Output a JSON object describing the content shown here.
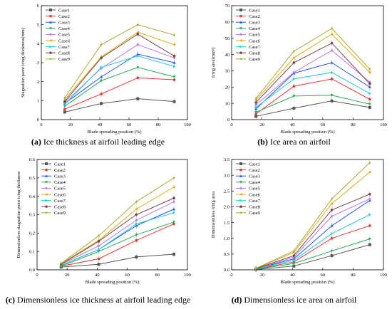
{
  "figure": {
    "captions": [
      {
        "letter": "(a)",
        "text": " Ice thickness at airfoil leading edge"
      },
      {
        "letter": "(b)",
        "text": " Ice area on airfoil"
      },
      {
        "letter": "(c)",
        "text": " Dimensionless ice thickness at airfoil leading edge"
      },
      {
        "letter": "(d)",
        "text": " Dimensionless ice area on airfoil"
      }
    ]
  },
  "series_styles": [
    {
      "name": "Case1",
      "color": "#555555",
      "marker": "square"
    },
    {
      "name": "Case2",
      "color": "#ee3333",
      "marker": "circle"
    },
    {
      "name": "Case3",
      "color": "#2255ee",
      "marker": "triangle-up"
    },
    {
      "name": "Case4",
      "color": "#22aa55",
      "marker": "triangle-down"
    },
    {
      "name": "Case5",
      "color": "#bb77ee",
      "marker": "diamond"
    },
    {
      "name": "Case6",
      "color": "#ddaa11",
      "marker": "triangle-left"
    },
    {
      "name": "Case7",
      "color": "#22ccdd",
      "marker": "triangle-right"
    },
    {
      "name": "Case8",
      "color": "#774444",
      "marker": "hexagon"
    },
    {
      "name": "Case9",
      "color": "#aaaa33",
      "marker": "star"
    }
  ],
  "chart_data": [
    {
      "type": "line",
      "xlabel": "Blade spreading position (%)",
      "ylabel": "Stagnation point icing thickness(mm)",
      "xlim": [
        0,
        100
      ],
      "ylim": [
        0,
        6
      ],
      "xticks": [
        0,
        20,
        40,
        60,
        80,
        100
      ],
      "yticks": [
        0,
        1,
        2,
        3,
        4,
        5,
        6
      ],
      "grid": false,
      "legend": "top-left",
      "x": [
        16,
        41,
        66,
        91
      ],
      "series": [
        {
          "name": "Case1",
          "values": [
            0.4,
            0.85,
            1.1,
            0.95
          ]
        },
        {
          "name": "Case2",
          "values": [
            0.55,
            1.35,
            2.2,
            2.1
          ]
        },
        {
          "name": "Case3",
          "values": [
            0.85,
            2.25,
            3.45,
            3.0
          ]
        },
        {
          "name": "Case4",
          "values": [
            0.7,
            2.05,
            2.75,
            2.25
          ]
        },
        {
          "name": "Case5",
          "values": [
            0.9,
            2.7,
            3.95,
            3.25
          ]
        },
        {
          "name": "Case6",
          "values": [
            1.05,
            3.3,
            4.6,
            3.95
          ]
        },
        {
          "name": "Case7",
          "values": [
            0.8,
            2.75,
            3.35,
            2.8
          ]
        },
        {
          "name": "Case8",
          "values": [
            0.95,
            3.25,
            4.5,
            3.35
          ]
        },
        {
          "name": "Case9",
          "values": [
            1.15,
            3.95,
            5.0,
            4.45
          ]
        }
      ]
    },
    {
      "type": "line",
      "xlabel": "Blade spreading position (%)",
      "ylabel": "Icing area(mm²)",
      "xlim": [
        0,
        100
      ],
      "ylim": [
        0,
        70
      ],
      "xticks": [
        0,
        20,
        40,
        60,
        80,
        100
      ],
      "yticks": [
        0,
        10,
        20,
        30,
        40,
        50,
        60,
        70
      ],
      "grid": false,
      "legend": "top-left",
      "x": [
        16,
        41,
        66,
        91
      ],
      "series": [
        {
          "name": "Case1",
          "values": [
            2,
            7,
            11.5,
            7.5
          ]
        },
        {
          "name": "Case2",
          "values": [
            3.5,
            20.5,
            25,
            12.5
          ]
        },
        {
          "name": "Case3",
          "values": [
            6.5,
            28.5,
            35,
            20
          ]
        },
        {
          "name": "Case4",
          "values": [
            4.5,
            14.5,
            15,
            9.5
          ]
        },
        {
          "name": "Case5",
          "values": [
            9,
            29,
            42.5,
            23
          ]
        },
        {
          "name": "Case6",
          "values": [
            12,
            38,
            52.5,
            29
          ]
        },
        {
          "name": "Case7",
          "values": [
            7.5,
            25,
            29,
            16
          ]
        },
        {
          "name": "Case8",
          "values": [
            10.5,
            35,
            47,
            22
          ]
        },
        {
          "name": "Case9",
          "values": [
            13,
            42,
            56,
            31
          ]
        }
      ]
    },
    {
      "type": "line",
      "xlabel": "Blade spreading position (%)",
      "ylabel": "Dimensionless stagnation point icing thickness",
      "xlim": [
        0,
        100
      ],
      "ylim": [
        0,
        0.6
      ],
      "xticks": [
        0,
        20,
        40,
        60,
        80,
        100
      ],
      "yticks": [
        "0.0",
        "0.1",
        "0.2",
        "0.3",
        "0.4",
        "0.5",
        "0.6"
      ],
      "grid": false,
      "legend": "top-left",
      "x": [
        16,
        41,
        66,
        91
      ],
      "series": [
        {
          "name": "Case1",
          "values": [
            0.015,
            0.03,
            0.07,
            0.085
          ]
        },
        {
          "name": "Case2",
          "values": [
            0.02,
            0.06,
            0.16,
            0.25
          ]
        },
        {
          "name": "Case3",
          "values": [
            0.025,
            0.11,
            0.24,
            0.33
          ]
        },
        {
          "name": "Case4",
          "values": [
            0.02,
            0.1,
            0.19,
            0.26
          ]
        },
        {
          "name": "Case5",
          "values": [
            0.03,
            0.13,
            0.27,
            0.37
          ]
        },
        {
          "name": "Case6",
          "values": [
            0.035,
            0.16,
            0.33,
            0.45
          ]
        },
        {
          "name": "Case7",
          "values": [
            0.025,
            0.11,
            0.25,
            0.31
          ]
        },
        {
          "name": "Case8",
          "values": [
            0.03,
            0.155,
            0.3,
            0.39
          ]
        },
        {
          "name": "Case9",
          "values": [
            0.035,
            0.185,
            0.37,
            0.5
          ]
        }
      ]
    },
    {
      "type": "line",
      "xlabel": "Blade spreading position (%)",
      "ylabel": "Dimensionless icing area",
      "xlim": [
        0,
        100
      ],
      "ylim": [
        0,
        3.5
      ],
      "xticks": [
        0,
        20,
        40,
        60,
        80,
        100
      ],
      "yticks": [
        "0.0",
        "0.5",
        "1.0",
        "1.5",
        "2.0",
        "2.5",
        "3.0",
        "3.5"
      ],
      "grid": false,
      "legend": "top-left",
      "x": [
        16,
        41,
        66,
        91
      ],
      "series": [
        {
          "name": "Case1",
          "values": [
            0.01,
            0.12,
            0.45,
            0.8
          ]
        },
        {
          "name": "Case2",
          "values": [
            0.02,
            0.25,
            1.0,
            1.4
          ]
        },
        {
          "name": "Case3",
          "values": [
            0.03,
            0.35,
            1.4,
            2.2
          ]
        },
        {
          "name": "Case4",
          "values": [
            0.02,
            0.2,
            0.6,
            0.98
          ]
        },
        {
          "name": "Case5",
          "values": [
            0.03,
            0.4,
            1.7,
            2.25
          ]
        },
        {
          "name": "Case6",
          "values": [
            0.04,
            0.55,
            2.1,
            3.1
          ]
        },
        {
          "name": "Case7",
          "values": [
            0.03,
            0.3,
            1.15,
            1.75
          ]
        },
        {
          "name": "Case8",
          "values": [
            0.04,
            0.45,
            1.9,
            2.4
          ]
        },
        {
          "name": "Case9",
          "values": [
            0.05,
            0.6,
            2.25,
            3.4
          ]
        }
      ]
    }
  ]
}
